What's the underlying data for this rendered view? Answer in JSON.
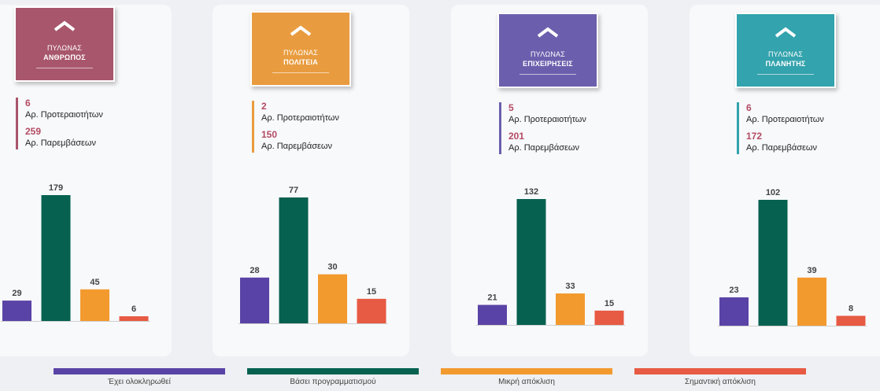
{
  "colors": {
    "completed": "#5a43a6",
    "scheduled": "#066150",
    "minor": "#f39a2f",
    "major": "#e75a43"
  },
  "pillars": [
    {
      "line1": "ΠΥΛΩΝΑΣ",
      "line2": "ΑΝΘΡΩΠΟΣ",
      "color": "#a8566c",
      "priorities_value": "6",
      "priorities_label": "Αρ. Προτεραιοτήτων",
      "interventions_value": "259",
      "interventions_label": "Αρ. Παρεμβάσεων",
      "values": [
        29,
        179,
        45,
        6
      ],
      "value_labels": [
        "29",
        "179",
        "45",
        "6"
      ]
    },
    {
      "line1": "ΠΥΛΩΝΑΣ",
      "line2": "ΠΟΛΙΤΕΙΑ",
      "color": "#e99c3f",
      "priorities_value": "2",
      "priorities_label": "Αρ. Προτεραιοτήτων",
      "interventions_value": "150",
      "interventions_label": "Αρ. Παρεμβάσεων",
      "values": [
        28,
        77,
        30,
        15
      ],
      "value_labels": [
        "28",
        "77",
        "30",
        "15"
      ]
    },
    {
      "line1": "ΠΥΛΩΝΑΣ",
      "line2": "ΕΠΙΧΕΙΡΗΣΕΙΣ",
      "color": "#6b5fad",
      "priorities_value": "5",
      "priorities_label": "Αρ. Προτεραιοτήτων",
      "interventions_value": "201",
      "interventions_label": "Αρ. Παρεμβάσεων",
      "values": [
        21,
        132,
        33,
        15
      ],
      "value_labels": [
        "21",
        "132",
        "33",
        "15"
      ]
    },
    {
      "line1": "ΠΥΛΩΝΑΣ",
      "line2": "ΠΛΑΝΗΤΗΣ",
      "color": "#33a3ad",
      "priorities_value": "6",
      "priorities_label": "Αρ. Προτεραιοτήτων",
      "interventions_value": "172",
      "interventions_label": "Αρ. Παρεμβάσεων",
      "values": [
        23,
        102,
        39,
        8
      ],
      "value_labels": [
        "23",
        "102",
        "39",
        "8"
      ]
    }
  ],
  "legend": [
    {
      "label": "Έχει ολοκληρωθεί",
      "color": "#5a43a6"
    },
    {
      "label": "Βάσει προγραμματισμού",
      "color": "#066150"
    },
    {
      "label": "Μικρή απόκλιση",
      "color": "#f39a2f"
    },
    {
      "label": "Σημαντική απόκλιση",
      "color": "#e75a43"
    }
  ],
  "chart_data": [
    {
      "type": "bar",
      "categories": [
        "Έχει ολοκληρωθεί",
        "Βάσει προγραμματισμού",
        "Μικρή απόκλιση",
        "Σημαντική απόκλιση"
      ],
      "values": [
        29,
        179,
        45,
        6
      ],
      "title": "ΠΥΛΩΝΑΣ ΑΝΘΡΩΠΟΣ"
    },
    {
      "type": "bar",
      "categories": [
        "Έχει ολοκληρωθεί",
        "Βάσει προγραμματισμού",
        "Μικρή απόκλιση",
        "Σημαντική απόκλιση"
      ],
      "values": [
        28,
        77,
        30,
        15
      ],
      "title": "ΠΥΛΩΝΑΣ ΠΟΛΙΤΕΙΑ"
    },
    {
      "type": "bar",
      "categories": [
        "Έχει ολοκληρωθεί",
        "Βάσει προγραμματισμού",
        "Μικρή απόκλιση",
        "Σημαντική απόκλιση"
      ],
      "values": [
        21,
        132,
        33,
        15
      ],
      "title": "ΠΥΛΩΝΑΣ ΕΠΙΧΕΙΡΗΣΕΙΣ"
    },
    {
      "type": "bar",
      "categories": [
        "Έχει ολοκληρωθεί",
        "Βάσει προγραμματισμού",
        "Μικρή απόκλιση",
        "Σημαντική απόκλιση"
      ],
      "values": [
        23,
        102,
        39,
        8
      ],
      "title": "ΠΥΛΩΝΑΣ ΠΛΑΝΗΤΗΣ"
    }
  ]
}
